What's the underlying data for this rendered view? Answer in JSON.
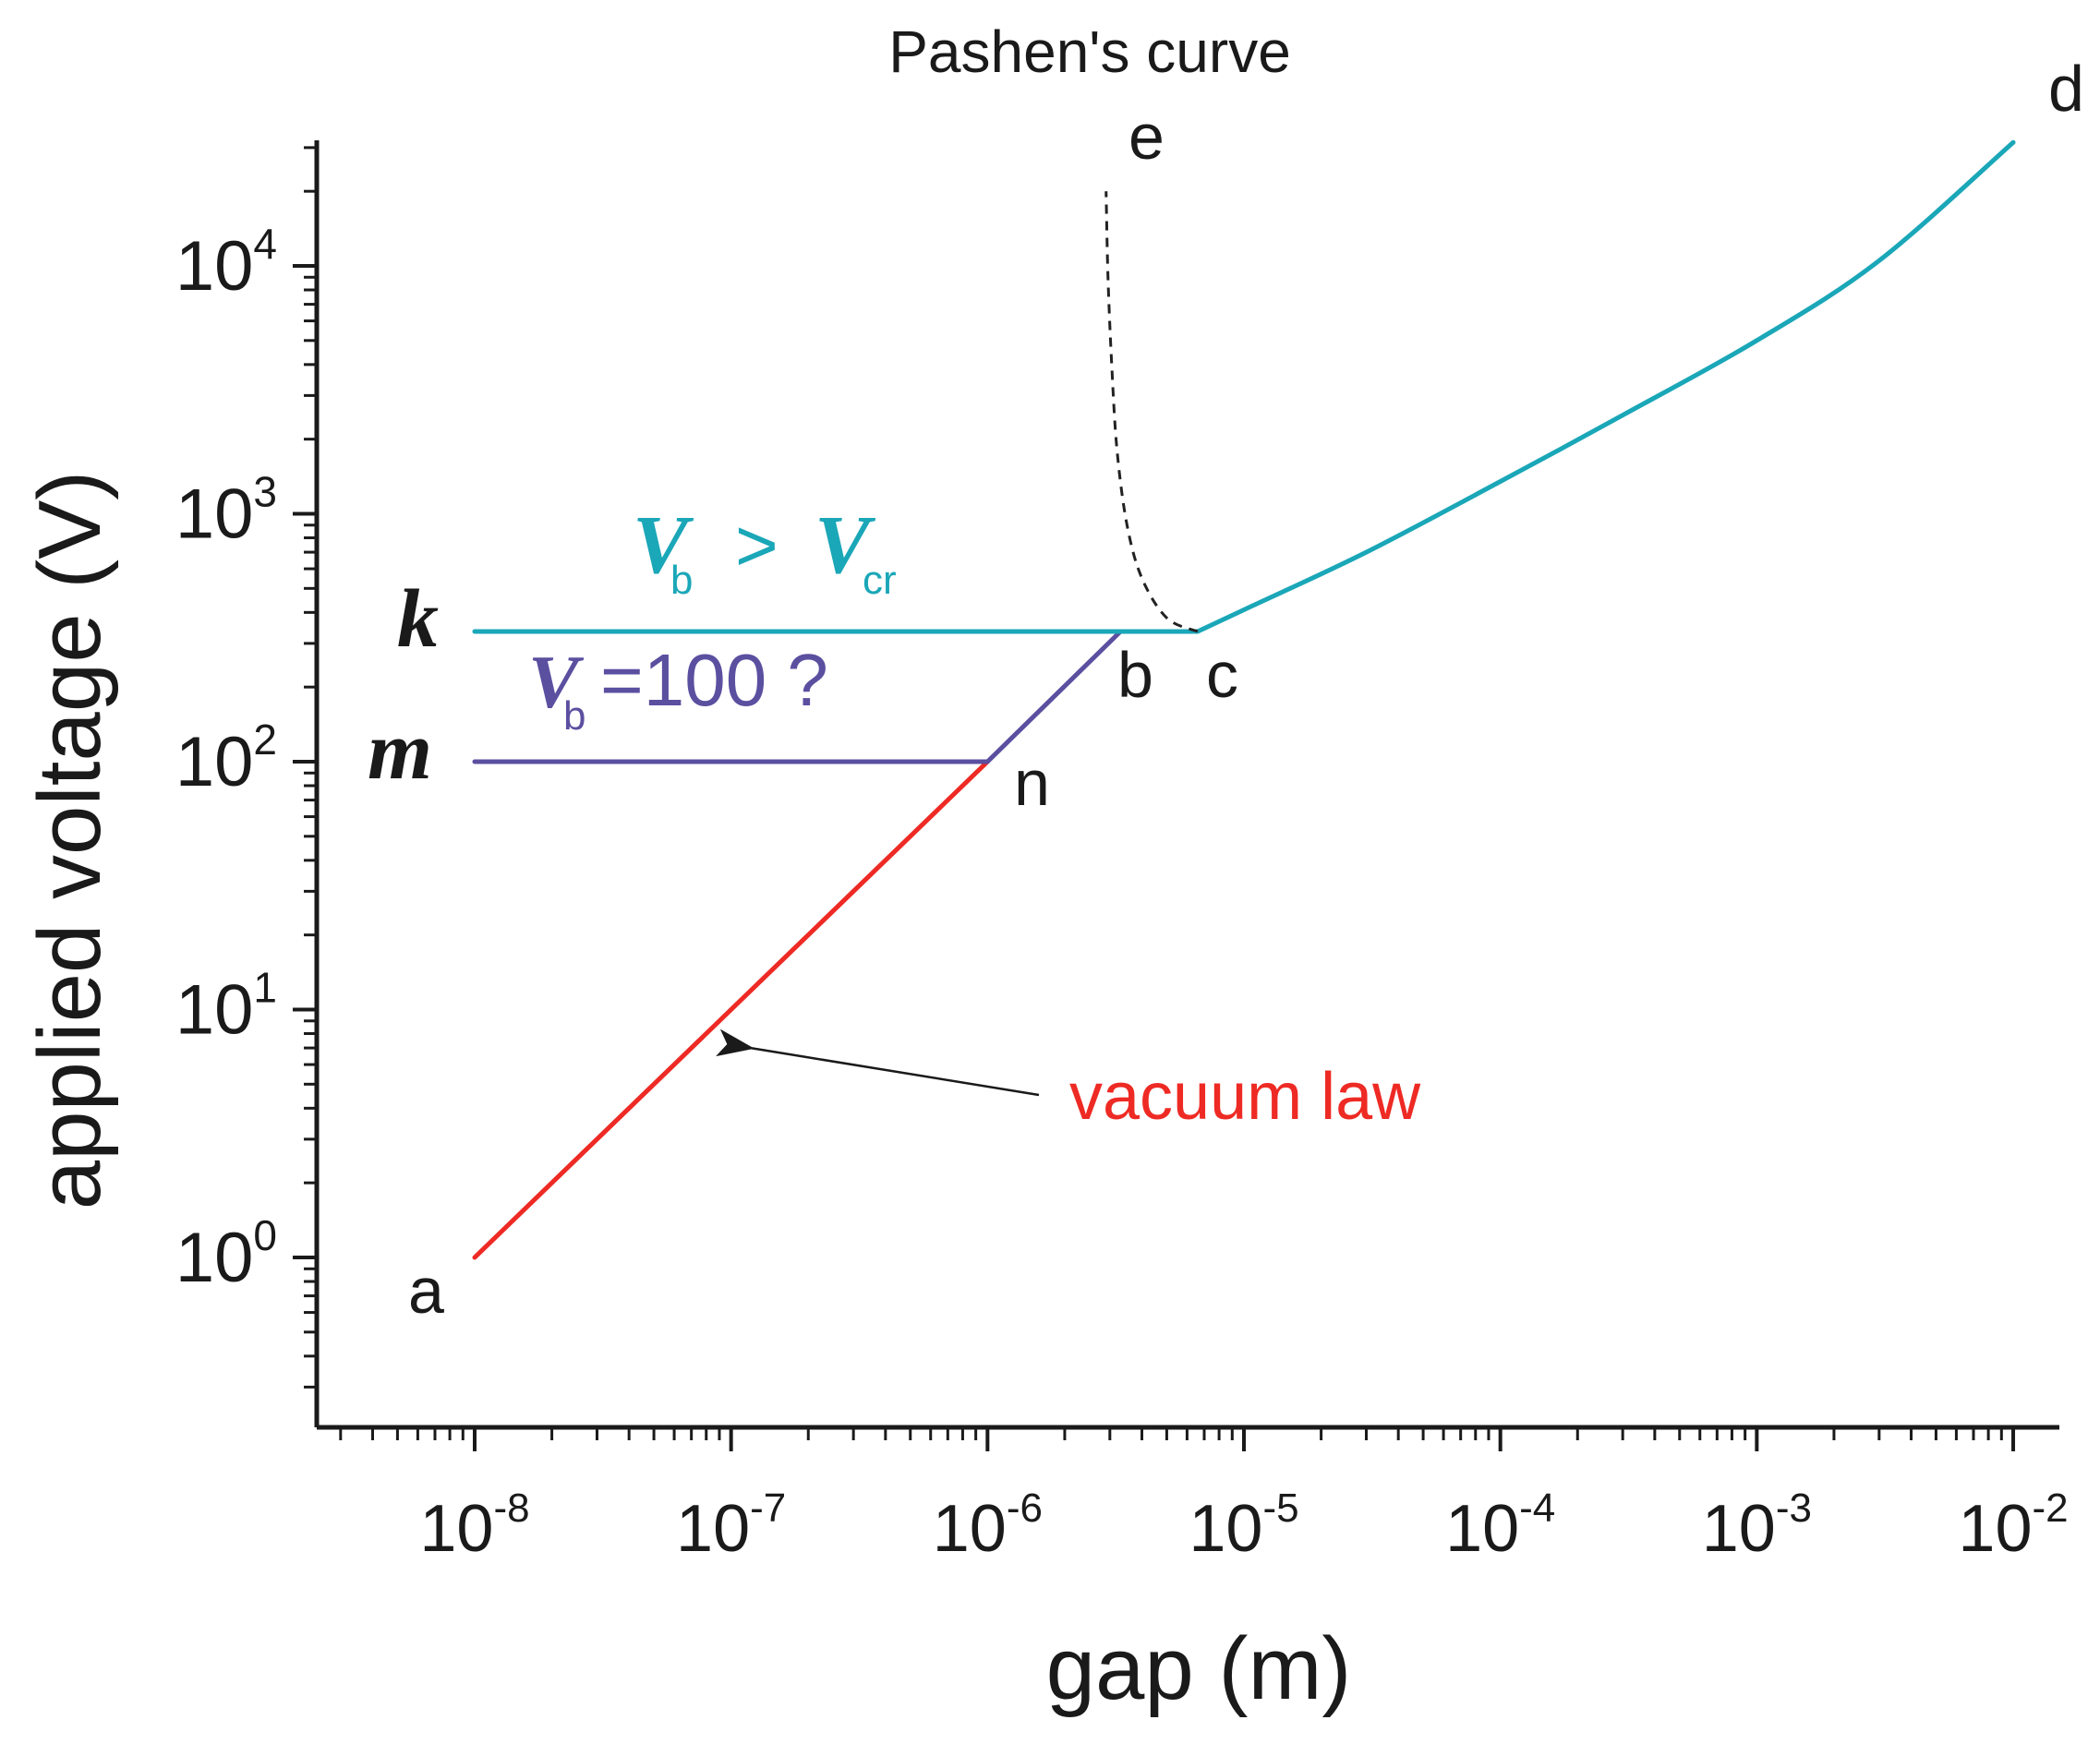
{
  "chart_data": {
    "type": "line",
    "title": "Pashen's curve",
    "xlabel": "gap (m)",
    "ylabel": "applied voltage (V)",
    "xscale": "log",
    "yscale": "log",
    "xlim": [
      3e-09,
      0.015
    ],
    "ylim": [
      0.2,
      30000
    ],
    "x_ticks": [
      {
        "base": "10",
        "exp": "-8",
        "value": 1e-08
      },
      {
        "base": "10",
        "exp": "-7",
        "value": 1e-07
      },
      {
        "base": "10",
        "exp": "-6",
        "value": 1e-06
      },
      {
        "base": "10",
        "exp": "-5",
        "value": 1e-05
      },
      {
        "base": "10",
        "exp": "-4",
        "value": 0.0001
      },
      {
        "base": "10",
        "exp": "-3",
        "value": 0.001
      },
      {
        "base": "10",
        "exp": "-2",
        "value": 0.01
      }
    ],
    "y_ticks": [
      {
        "base": "10",
        "exp": "0",
        "value": 1
      },
      {
        "base": "10",
        "exp": "1",
        "value": 10
      },
      {
        "base": "10",
        "exp": "2",
        "value": 100
      },
      {
        "base": "10",
        "exp": "3",
        "value": 1000
      },
      {
        "base": "10",
        "exp": "4",
        "value": 10000
      }
    ],
    "series": [
      {
        "name": "vacuum law",
        "color": "#ee2a24",
        "style": "solid",
        "x": [
          1e-08,
          1e-06
        ],
        "y": [
          1,
          100
        ]
      },
      {
        "name": "m-n",
        "color": "#5b4fa0",
        "style": "solid",
        "x": [
          1e-08,
          1e-06
        ],
        "y": [
          100,
          100
        ]
      },
      {
        "name": "n-b",
        "color": "#5b4fa0",
        "style": "solid",
        "x": [
          1e-06,
          3.3e-06
        ],
        "y": [
          100,
          335
        ]
      },
      {
        "name": "k-c",
        "color": "#1aa7b8",
        "style": "solid",
        "x": [
          1e-08,
          6.6e-06
        ],
        "y": [
          335,
          335
        ]
      },
      {
        "name": "Paschen c-d",
        "color": "#1aa7b8",
        "style": "solid",
        "x": [
          6.6e-06,
          1e-05,
          3e-05,
          0.0001,
          0.0003,
          0.001,
          0.003,
          0.01
        ],
        "y": [
          335,
          410,
          700,
          1350,
          2500,
          5000,
          10500,
          31500
        ]
      },
      {
        "name": "left branch c-e",
        "color": "#222222",
        "style": "dashed",
        "x": [
          6.6e-06,
          5e-06,
          4e-06,
          3.5e-06,
          3.2e-06,
          3.05e-06,
          2.95e-06,
          2.9e-06
        ],
        "y": [
          335,
          380,
          550,
          900,
          1800,
          4000,
          9000,
          20000
        ]
      }
    ],
    "points": [
      {
        "label": "a",
        "x": 1e-08,
        "y": 1
      },
      {
        "label": "b",
        "x": 3.3e-06,
        "y": 335
      },
      {
        "label": "c",
        "x": 6.6e-06,
        "y": 335
      },
      {
        "label": "d",
        "x": 0.01,
        "y": 31500
      },
      {
        "label": "e",
        "x": 2.9e-06,
        "y": 20000
      },
      {
        "label": "n",
        "x": 1e-06,
        "y": 100
      },
      {
        "label": "k",
        "x": 1e-08,
        "y": 335
      },
      {
        "label": "m",
        "x": 1e-08,
        "y": 100
      }
    ],
    "annotations": {
      "vacuum_label": "vacuum law",
      "vb_gt_vcr": {
        "v": "V",
        "sub_b": "b",
        "gt": ">",
        "sub_cr": "cr"
      },
      "vb_100": {
        "v": "V",
        "sub_b": "b",
        "rest": "=100 ?"
      }
    },
    "colors": {
      "vacuum": "#ee2a24",
      "purple": "#5b4fa0",
      "teal": "#1aa7b8",
      "axis": "#1a1a1a"
    }
  }
}
